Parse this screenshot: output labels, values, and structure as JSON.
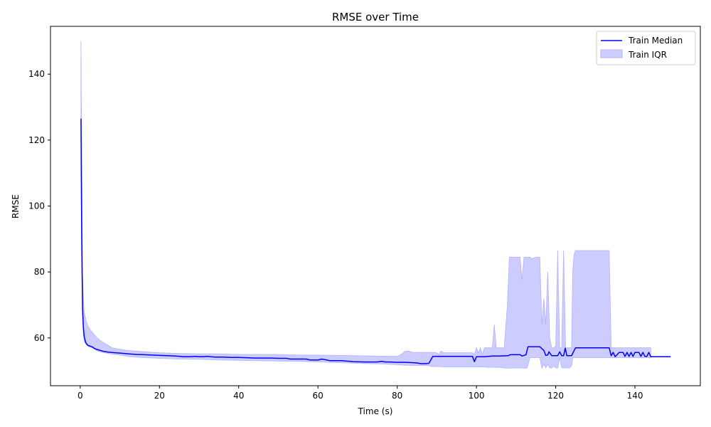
{
  "chart_data": {
    "type": "line",
    "title": "RMSE over Time",
    "xlabel": "Time (s)",
    "ylabel": "RMSE",
    "xlim": [
      -7.5,
      156.5
    ],
    "ylim": [
      45.5,
      154.5
    ],
    "xticks": [
      0,
      20,
      40,
      60,
      80,
      100,
      120,
      140
    ],
    "yticks": [
      60,
      80,
      100,
      120,
      140
    ],
    "grid": false,
    "legend_position": "top-right",
    "series": [
      {
        "name": "Train Median",
        "kind": "line",
        "color": "#0000ff",
        "x": [
          0.2,
          0.4,
          0.6,
          0.8,
          1.0,
          1.3,
          1.6,
          2.0,
          2.5,
          3.0,
          3.5,
          4.0,
          5.0,
          6.0,
          7.0,
          8.0,
          9.0,
          10.0,
          11.0,
          12.0,
          14.0,
          16.0,
          18.0,
          20.0,
          22.0,
          24.0,
          25.0,
          26.0,
          28.0,
          29.0,
          30.0,
          31.0,
          32.0,
          34.0,
          36.0,
          38.0,
          40.0,
          42.0,
          44.0,
          46.0,
          48.0,
          50.0,
          52.0,
          53.0,
          55.0,
          57.0,
          58.0,
          60.0,
          61.0,
          63.0,
          66.0,
          67.0,
          69.0,
          72.0,
          75.0,
          76.0,
          77.0,
          78.0,
          80.0,
          82.0,
          84.0,
          85.0,
          86.0,
          87.0,
          88.0,
          89.0,
          90.0,
          95.0,
          99.0,
          99.5,
          100.0,
          102.0,
          104.0,
          106.0,
          108.0,
          108.5,
          111.0,
          111.5,
          112.5,
          113.0,
          116.0,
          117.0,
          117.5,
          118.0,
          118.3,
          119.0,
          120.0,
          120.5,
          121.0,
          121.5,
          122.0,
          122.4,
          122.8,
          123.5,
          124.0,
          125.0,
          126.0,
          133.5,
          134.0,
          134.5,
          135.0,
          136.0,
          137.0,
          137.5,
          138.0,
          138.5,
          139.0,
          139.5,
          140.0,
          141.0,
          141.5,
          142.0,
          142.5,
          143.0,
          143.5,
          144.0,
          149.0
        ],
        "y": [
          126.5,
          90.0,
          69.0,
          63.0,
          60.5,
          59.0,
          58.2,
          57.7,
          57.5,
          57.3,
          56.9,
          56.6,
          56.2,
          55.9,
          55.7,
          55.6,
          55.5,
          55.4,
          55.3,
          55.2,
          55.0,
          54.9,
          54.8,
          54.7,
          54.6,
          54.5,
          54.4,
          54.3,
          54.3,
          54.4,
          54.3,
          54.3,
          54.4,
          54.2,
          54.2,
          54.1,
          54.1,
          54.0,
          53.9,
          53.9,
          53.9,
          53.8,
          53.8,
          53.6,
          53.6,
          53.6,
          53.3,
          53.3,
          53.6,
          53.1,
          53.1,
          53.0,
          52.8,
          52.7,
          52.7,
          52.9,
          52.7,
          52.7,
          52.6,
          52.6,
          52.5,
          52.4,
          52.2,
          52.2,
          52.3,
          54.4,
          54.4,
          54.4,
          54.4,
          52.8,
          54.3,
          54.3,
          54.5,
          54.5,
          54.6,
          54.9,
          54.9,
          54.5,
          54.9,
          57.3,
          57.3,
          56.2,
          54.7,
          54.8,
          55.8,
          54.6,
          54.6,
          54.6,
          55.8,
          54.6,
          54.6,
          56.9,
          54.6,
          54.6,
          54.6,
          57.0,
          57.0,
          57.0,
          54.6,
          55.6,
          54.3,
          55.6,
          55.6,
          54.4,
          55.6,
          54.4,
          55.6,
          54.4,
          55.6,
          55.6,
          54.4,
          55.6,
          54.4,
          54.4,
          55.6,
          54.3,
          54.3
        ]
      },
      {
        "name": "Train IQR",
        "kind": "band",
        "color": "#ccccff",
        "x": [
          0.2,
          0.4,
          0.6,
          0.8,
          1.0,
          1.5,
          2.0,
          2.5,
          3.0,
          3.5,
          4.0,
          5.0,
          6.0,
          7.0,
          8.0,
          10.0,
          12.0,
          15.0,
          20.0,
          25.0,
          30.0,
          35.0,
          40.0,
          45.0,
          50.0,
          55.0,
          60.0,
          65.0,
          70.0,
          75.0,
          80.0,
          81.0,
          82.0,
          83.0,
          84.0,
          85.0,
          86.0,
          87.0,
          88.0,
          88.5,
          89.0,
          90.0,
          90.5,
          91.0,
          92.0,
          95.0,
          99.0,
          99.5,
          100.0,
          100.5,
          101.0,
          101.5,
          102.0,
          103.0,
          104.0,
          104.5,
          105.0,
          106.0,
          107.0,
          107.8,
          108.3,
          110.0,
          111.0,
          111.5,
          112.0,
          112.8,
          113.5,
          114.0,
          115.0,
          116.0,
          116.5,
          117.0,
          117.5,
          118.0,
          118.5,
          119.0,
          119.5,
          120.0,
          120.5,
          121.0,
          121.5,
          122.0,
          122.5,
          123.0,
          123.5,
          124.0,
          124.3,
          124.6,
          125.0,
          125.5,
          126.0,
          127.0,
          130.0,
          133.0,
          133.5,
          134.0,
          140.0,
          144.0
        ],
        "upper": [
          150.0,
          112.0,
          80.0,
          72.0,
          68.0,
          65.0,
          63.5,
          62.5,
          61.8,
          61.0,
          60.3,
          59.3,
          58.5,
          57.8,
          57.0,
          56.6,
          56.2,
          55.9,
          55.5,
          55.3,
          55.2,
          55.2,
          55.0,
          55.0,
          55.0,
          54.8,
          54.8,
          54.7,
          54.6,
          54.5,
          54.4,
          55.0,
          56.0,
          56.0,
          55.6,
          55.6,
          55.6,
          55.6,
          55.6,
          55.6,
          55.6,
          55.5,
          55.0,
          56.0,
          55.5,
          55.5,
          55.5,
          55.0,
          57.0,
          55.5,
          57.0,
          55.0,
          57.0,
          57.0,
          57.0,
          64.0,
          57.0,
          57.0,
          57.0,
          70.0,
          84.5,
          84.5,
          84.5,
          77.5,
          84.5,
          84.5,
          84.5,
          84.0,
          84.5,
          84.5,
          64.0,
          72.0,
          64.0,
          80.0,
          60.0,
          57.0,
          57.0,
          57.5,
          86.5,
          57.0,
          57.0,
          86.5,
          57.0,
          57.0,
          57.0,
          57.0,
          80.0,
          85.0,
          86.5,
          86.5,
          86.5,
          86.5,
          86.5,
          86.5,
          86.5,
          57.0,
          57.0,
          57.0
        ],
        "lower": [
          110.0,
          80.0,
          66.0,
          61.0,
          59.0,
          58.0,
          57.5,
          57.2,
          57.0,
          56.6,
          56.2,
          55.8,
          55.5,
          55.3,
          55.1,
          54.8,
          54.4,
          54.1,
          53.8,
          53.6,
          53.5,
          53.3,
          53.2,
          53.1,
          53.0,
          52.9,
          52.7,
          52.5,
          52.3,
          52.1,
          51.9,
          51.8,
          51.7,
          51.7,
          51.6,
          51.6,
          51.6,
          51.6,
          51.6,
          51.3,
          51.3,
          51.3,
          51.3,
          51.3,
          51.2,
          51.2,
          51.2,
          51.2,
          51.2,
          51.2,
          51.2,
          51.2,
          51.2,
          51.1,
          51.1,
          51.1,
          51.1,
          51.0,
          50.9,
          50.8,
          50.8,
          50.9,
          50.9,
          50.9,
          50.8,
          50.9,
          54.0,
          54.0,
          54.0,
          54.0,
          50.8,
          52.0,
          50.9,
          52.0,
          50.9,
          50.9,
          51.5,
          50.9,
          50.9,
          54.0,
          51.0,
          50.9,
          50.9,
          50.9,
          50.9,
          51.5,
          54.0,
          54.0,
          54.0,
          54.0,
          54.0,
          54.0,
          54.0,
          54.0,
          54.0,
          54.0,
          54.0,
          54.0
        ]
      }
    ]
  }
}
